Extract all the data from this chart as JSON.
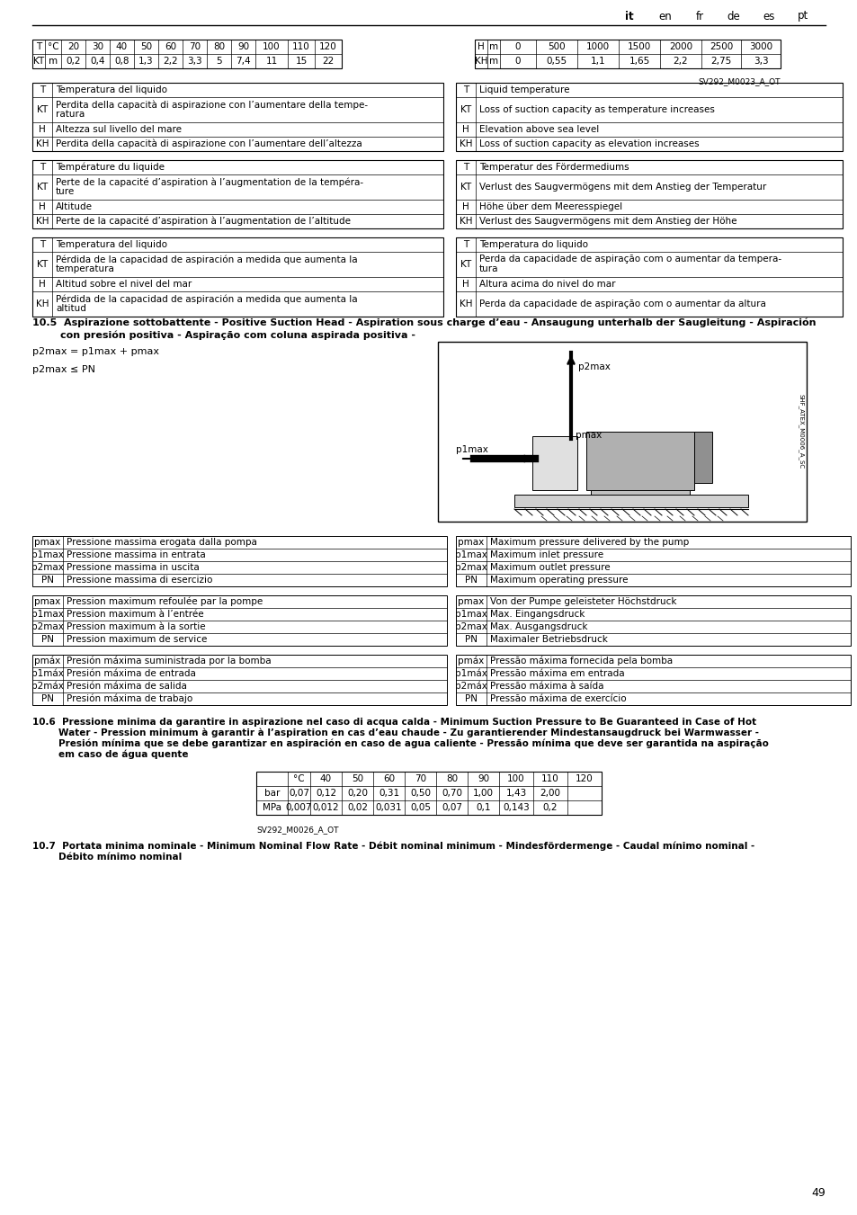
{
  "page_num": "49",
  "header_tabs": [
    "it",
    "en",
    "fr",
    "de",
    "es",
    "pt"
  ],
  "active_tab": "it",
  "table1_headers": [
    "T",
    "°C",
    "20",
    "30",
    "40",
    "50",
    "60",
    "70",
    "80",
    "90",
    "100",
    "110",
    "120"
  ],
  "table1_row": [
    "KT",
    "m",
    "0,2",
    "0,4",
    "0,8",
    "1,3",
    "2,2",
    "3,3",
    "5",
    "7,4",
    "11",
    "15",
    "22"
  ],
  "table2_headers": [
    "H",
    "m",
    "0",
    "500",
    "1000",
    "1500",
    "2000",
    "2500",
    "3000"
  ],
  "table2_row": [
    "KH",
    "m",
    "0",
    "0,55",
    "1,1",
    "1,65",
    "2,2",
    "2,75",
    "3,3"
  ],
  "sv_ref1": "SV292_M0023_A_OT",
  "legend_it_en": [
    [
      "T",
      "Temperatura del liquido",
      "T",
      "Liquid temperature"
    ],
    [
      "KT",
      "Perdita della capacità di aspirazione con l’aumentare della tempe-\nratura",
      "KT",
      "Loss of suction capacity as temperature increases"
    ],
    [
      "H",
      "Altezza sul livello del mare",
      "H",
      "Elevation above sea level"
    ],
    [
      "KH",
      "Perdita della capacità di aspirazione con l’aumentare dell’altezza",
      "KH",
      "Loss of suction capacity as elevation increases"
    ]
  ],
  "legend_fr_de": [
    [
      "T",
      "Température du liquide",
      "T",
      "Temperatur des Fördermediums"
    ],
    [
      "KT",
      "Perte de la capacité d’aspiration à l’augmentation de la tempéra-\nture",
      "KT",
      "Verlust des Saugvermögens mit dem Anstieg der Temperatur"
    ],
    [
      "H",
      "Altitude",
      "H",
      "Höhe über dem Meeresspiegel"
    ],
    [
      "KH",
      "Perte de la capacité d’aspiration à l’augmentation de l’altitude",
      "KH",
      "Verlust des Saugvermögens mit dem Anstieg der Höhe"
    ]
  ],
  "legend_es_pt": [
    [
      "T",
      "Temperatura del liquido",
      "T",
      "Temperatura do liquido"
    ],
    [
      "KT",
      "Pérdida de la capacidad de aspiración a medida que aumenta la\ntemperatura",
      "KT",
      "Perda da capacidade de aspiração com o aumentar da tempera-\ntura"
    ],
    [
      "H",
      "Altitud sobre el nivel del mar",
      "H",
      "Altura acima do nivel do mar"
    ],
    [
      "KH",
      "Pérdida de la capacidad de aspiración a medida que aumenta la\naltitud",
      "KH",
      "Perda da capacidade de aspiração com o aumentar da altura"
    ]
  ],
  "section_10_5_line1": "10.5  Aspirazione sottobattente - Positive Suction Head - Aspiration sous charge d’eau - Ansaugung unterhalb der Saugleitung - Aspiración",
  "section_10_5_line2": "        con presión positiva - Aspiração com coluna aspirada positiva -",
  "formula1": "p2max = p1max + pmax",
  "formula2": "p2max ≤ PN",
  "sv_ref2": "SHF_ATEX_M0006_A_SC",
  "legend_pmax_it": [
    [
      "pmax",
      "Pressione massima erogata dalla pompa"
    ],
    [
      "p1max",
      "Pressione massima in entrata"
    ],
    [
      "p2max",
      "Pressione massima in uscita"
    ],
    [
      "PN",
      "Pressione massima di esercizio"
    ]
  ],
  "legend_pmax_en": [
    [
      "pmax",
      "Maximum pressure delivered by the pump"
    ],
    [
      "p1max",
      "Maximum inlet pressure"
    ],
    [
      "p2max",
      "Maximum outlet pressure"
    ],
    [
      "PN",
      "Maximum operating pressure"
    ]
  ],
  "legend_pmax_fr": [
    [
      "pmax",
      "Pression maximum refoulée par la pompe"
    ],
    [
      "p1max",
      "Pression maximum à l’entrée"
    ],
    [
      "p2max",
      "Pression maximum à la sortie"
    ],
    [
      "PN",
      "Pression maximum de service"
    ]
  ],
  "legend_pmax_de": [
    [
      "pmax",
      "Von der Pumpe geleisteter Höchstdruck"
    ],
    [
      "p1max",
      "Max. Eingangsdruck"
    ],
    [
      "p2max",
      "Max. Ausgangsdruck"
    ],
    [
      "PN",
      "Maximaler Betriebsdruck"
    ]
  ],
  "legend_pmax_es": [
    [
      "pmáx",
      "Presión máxima suministrada por la bomba"
    ],
    [
      "p1máx",
      "Presión máxima de entrada"
    ],
    [
      "p2máx",
      "Presión máxima de salida"
    ],
    [
      "PN",
      "Presión máxima de trabajo"
    ]
  ],
  "legend_pmax_pt": [
    [
      "pmáx",
      "Pressão máxima fornecida pela bomba"
    ],
    [
      "p1máx",
      "Pressão máxima em entrada"
    ],
    [
      "p2máx",
      "Pressão máxima à saída"
    ],
    [
      "PN",
      "Pressão máxima de exercício"
    ]
  ],
  "section_10_6_line1": "10.6  Pressione minima da garantire in aspirazione nel caso di acqua calda - Minimum Suction Pressure to Be Guaranteed in Case of Hot",
  "section_10_6_line2": "        Water - Pression minimum à garantir à l’aspiration en cas d’eau chaude - Zu garantierender Mindestansaugdruck bei Warmwasser -",
  "section_10_6_line3": "        Presión mínima que se debe garantizar en aspiración en caso de agua caliente - Pressão mínima que deve ser garantida na aspiração",
  "section_10_6_line4": "        em caso de água quente",
  "table3_col_headers": [
    "°C",
    "40",
    "50",
    "60",
    "70",
    "80",
    "90",
    "100",
    "110",
    "120"
  ],
  "table3_row1": [
    "bar",
    "0,07",
    "0,12",
    "0,20",
    "0,31",
    "0,50",
    "0,70",
    "1,00",
    "1,43",
    "2,00"
  ],
  "table3_row2": [
    "MPa",
    "0,007",
    "0,012",
    "0,02",
    "0,031",
    "0,05",
    "0,07",
    "0,1",
    "0,143",
    "0,2"
  ],
  "sv_ref3": "SV292_M0026_A_OT",
  "section_10_7_line1": "10.7  Portata minima nominale - Minimum Nominal Flow Rate - Débit nominal minimum - Mindesfördermenge - Caudal mínimo nominal -",
  "section_10_7_line2": "        Débito mínimo nominal",
  "bg_color": "#ffffff"
}
